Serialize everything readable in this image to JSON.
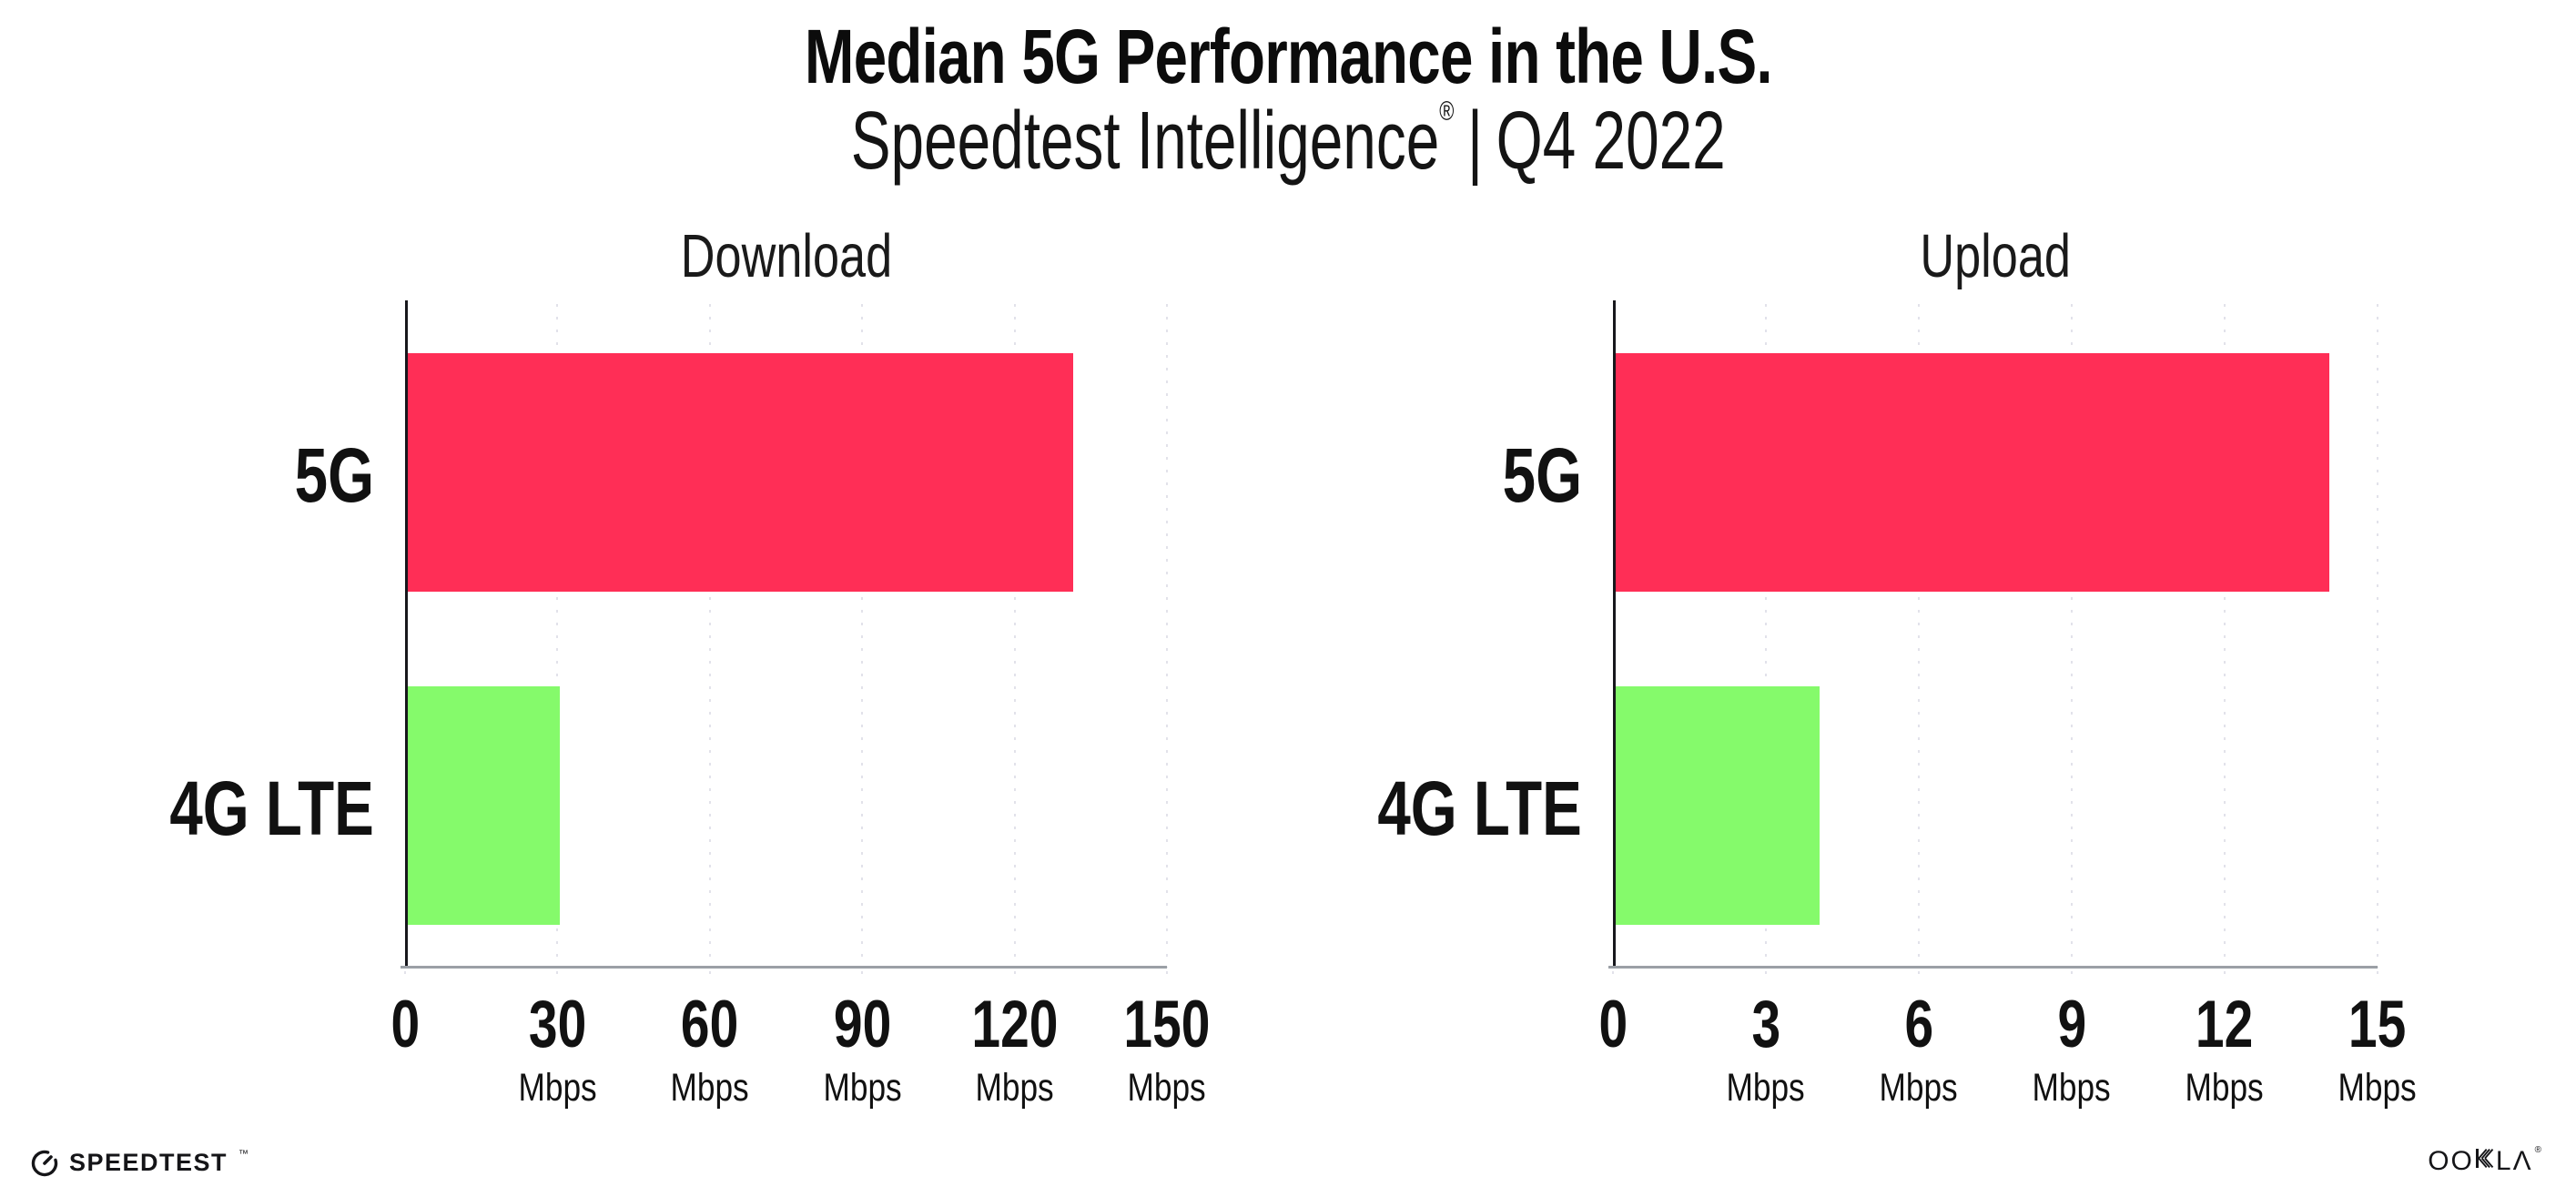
{
  "header": {
    "title": "Median 5G Performance in the U.S.",
    "subtitle_brand": "Speedtest Intelligence",
    "subtitle_reg": "®",
    "subtitle_sep": "|",
    "subtitle_period": "Q4 2022"
  },
  "chart_data": [
    {
      "type": "bar",
      "orientation": "horizontal",
      "title": "Download",
      "categories": [
        "5G",
        "4G LTE"
      ],
      "values": [
        131,
        30
      ],
      "unit": "Mbps",
      "xlim": [
        0,
        150
      ],
      "xticks": [
        0,
        30,
        60,
        90,
        120,
        150
      ],
      "grid": "dotted-vertical",
      "legend": "none",
      "bar_colors": [
        "#FF2E56",
        "#85FA6B"
      ]
    },
    {
      "type": "bar",
      "orientation": "horizontal",
      "title": "Upload",
      "categories": [
        "5G",
        "4G LTE"
      ],
      "values": [
        14,
        4
      ],
      "unit": "Mbps",
      "xlim": [
        0,
        15
      ],
      "xticks": [
        0,
        3,
        6,
        9,
        12,
        15
      ],
      "grid": "dotted-vertical",
      "legend": "none",
      "bar_colors": [
        "#FF2E56",
        "#85FA6B"
      ]
    }
  ],
  "colors": {
    "bar_5g": "#FF2E56",
    "bar_4g_lte": "#85FA6B",
    "gridline": "#E2E2EA",
    "x_axis_line": "#9BA0A6",
    "y_axis_line": "#17171C",
    "text": "#111111",
    "background": "#FFFFFF"
  },
  "footer": {
    "speedtest_label": "SPEEDTEST",
    "speedtest_mark": "™",
    "ookla_oo": "OO",
    "ookla_la": "LΛ",
    "ookla_reg": "®"
  }
}
